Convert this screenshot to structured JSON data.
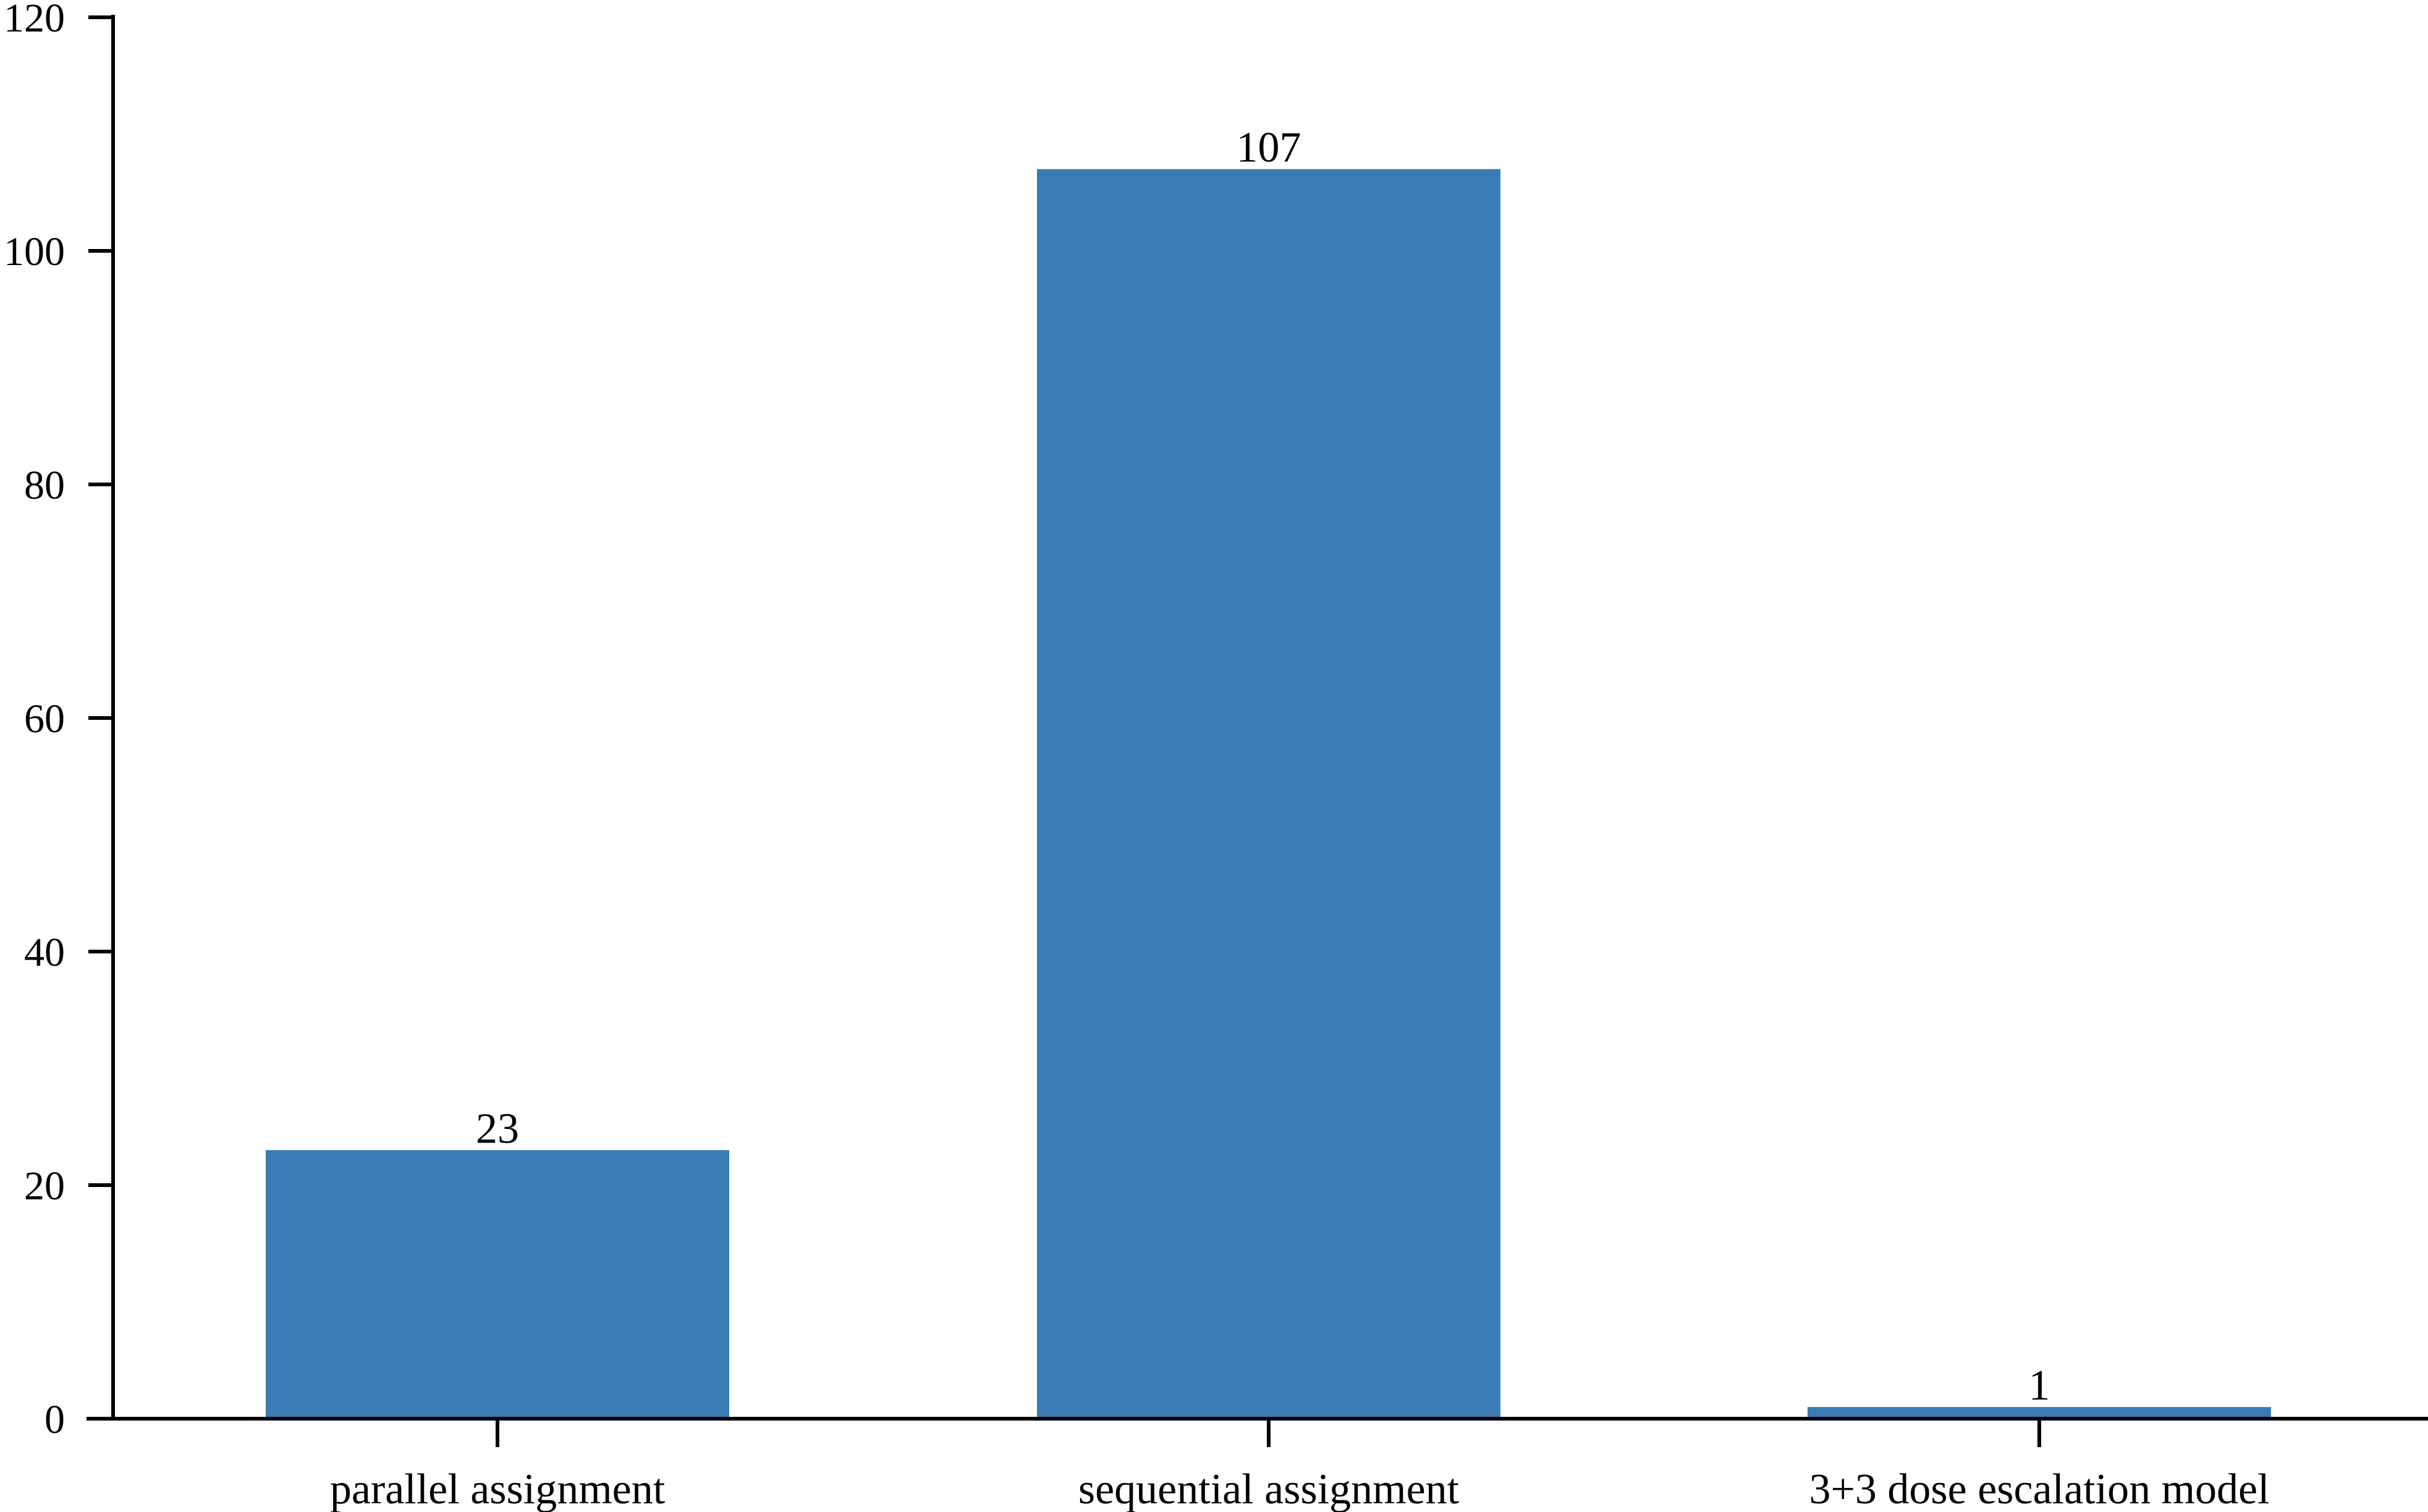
{
  "chart_data": {
    "type": "bar",
    "categories": [
      "parallel assignment",
      "sequential assignment",
      "3+3 dose escalation model"
    ],
    "values": [
      23,
      107,
      1
    ],
    "data_labels": [
      "23",
      "107",
      "1"
    ],
    "title": "",
    "xlabel": "",
    "ylabel": "",
    "ylim": [
      0,
      120
    ],
    "yticks": [
      0,
      20,
      40,
      60,
      80,
      100,
      120
    ],
    "ytick_labels": [
      "0",
      "20",
      "40",
      "60",
      "80",
      "100",
      "120"
    ],
    "grid": false,
    "legend": "none",
    "bar_color": "#3a7cb5"
  }
}
